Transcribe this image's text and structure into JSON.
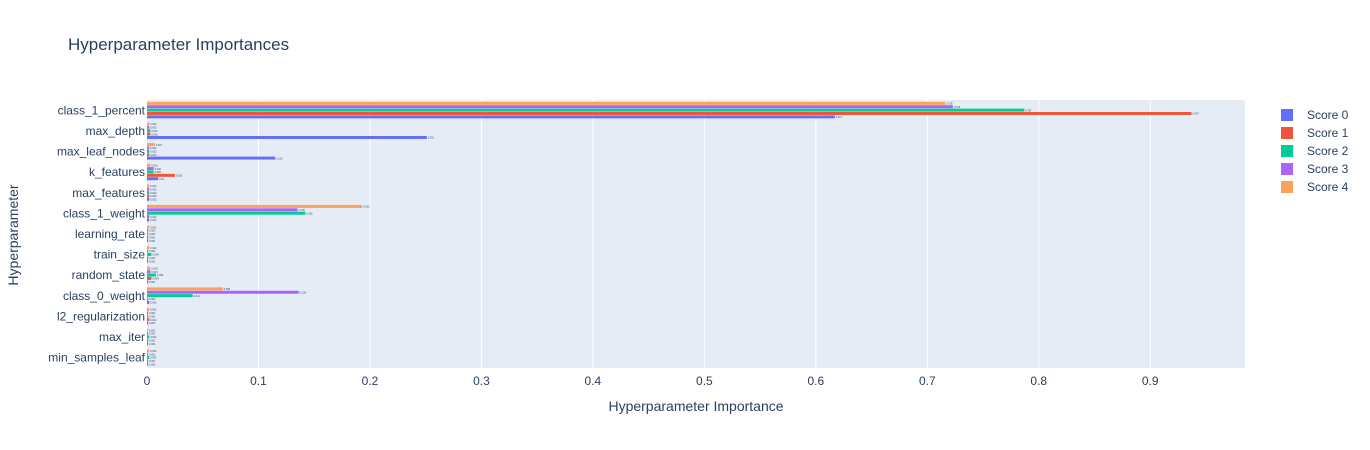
{
  "chart_data": {
    "type": "bar",
    "orientation": "horizontal",
    "title": "Hyperparameter Importances",
    "xlabel": "Hyperparameter Importance",
    "ylabel": "Hyperparameter",
    "xlim": [
      0,
      0.985
    ],
    "xticks": [
      0,
      0.1,
      0.2,
      0.3,
      0.4,
      0.5,
      0.6,
      0.7,
      0.8,
      0.9
    ],
    "xtick_labels": [
      "0",
      "0.1",
      "0.2",
      "0.3",
      "0.4",
      "0.5",
      "0.6",
      "0.7",
      "0.8",
      "0.9"
    ],
    "grid": true,
    "legend_position": "top-right",
    "categories": [
      "class_1_percent",
      "max_depth",
      "max_leaf_nodes",
      "k_features",
      "max_features",
      "class_1_weight",
      "learning_rate",
      "train_size",
      "random_state",
      "class_0_weight",
      "l2_regularization",
      "max_iter",
      "min_samples_leaf"
    ],
    "series": [
      {
        "name": "Score 0",
        "color": "#636efa",
        "values": [
          0.617,
          0.251,
          0.115,
          0.01,
          0.002,
          0.002,
          0.001,
          0.001,
          0.001,
          0.002,
          0.001,
          0.001,
          0.001
        ]
      },
      {
        "name": "Score 1",
        "color": "#EF553B",
        "values": [
          0.937,
          0.003,
          0.002,
          0.025,
          0.002,
          0.002,
          0.001,
          0.001,
          0.004,
          0.001,
          0.002,
          0.001,
          0.001
        ]
      },
      {
        "name": "Score 2",
        "color": "#00cc96",
        "values": [
          0.787,
          0.003,
          0.002,
          0.006,
          0.002,
          0.142,
          0.001,
          0.004,
          0.008,
          0.041,
          0.001,
          0.002,
          0.002
        ]
      },
      {
        "name": "Score 3",
        "color": "#ab63fa",
        "values": [
          0.723,
          0.002,
          0.002,
          0.006,
          0.002,
          0.135,
          0.001,
          0.001,
          0.003,
          0.136,
          0.001,
          0.001,
          0.001
        ]
      },
      {
        "name": "Score 4",
        "color": "#FFA15A",
        "values": [
          0.716,
          0.002,
          0.007,
          0.003,
          0.002,
          0.193,
          0.002,
          0.002,
          0.003,
          0.068,
          0.002,
          0.001,
          0.002
        ]
      }
    ]
  }
}
